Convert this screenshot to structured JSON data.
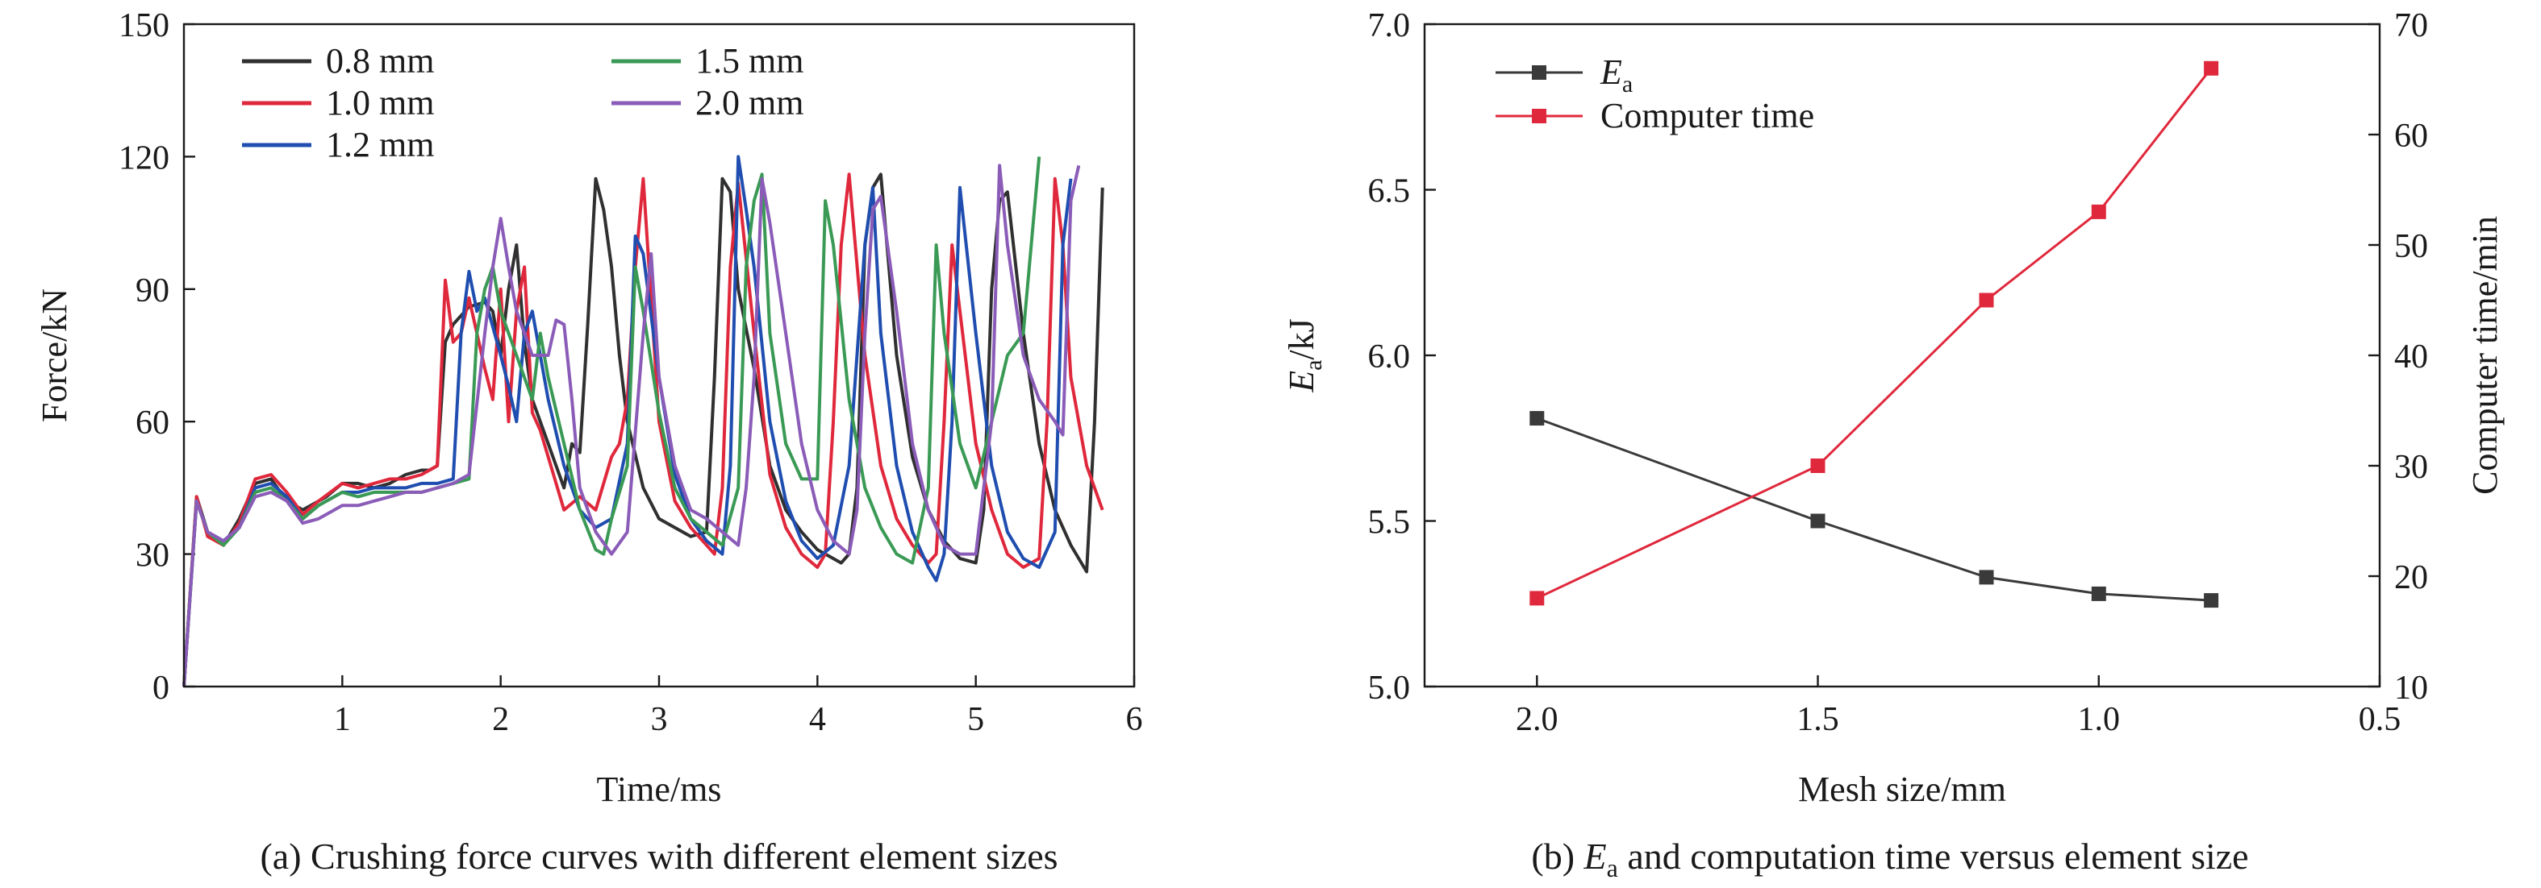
{
  "chart_data": [
    {
      "type": "line",
      "caption": "(a) Crushing force curves with different element sizes",
      "xlabel": "Time/ms",
      "ylabel": "Force/kN",
      "xlim": [
        0,
        6
      ],
      "ylim": [
        0,
        150
      ],
      "xticks": [
        1,
        2,
        3,
        4,
        5,
        6
      ],
      "yticks": [
        0,
        30,
        60,
        90,
        120,
        150
      ],
      "legend_position": "top-left",
      "series": [
        {
          "name": "0.8 mm",
          "color": "#303030",
          "x": [
            0,
            0.08,
            0.15,
            0.25,
            0.35,
            0.45,
            0.55,
            0.65,
            0.75,
            0.9,
            1.0,
            1.1,
            1.2,
            1.3,
            1.4,
            1.5,
            1.55,
            1.6,
            1.65,
            1.7,
            1.75,
            1.8,
            1.9,
            1.95,
            2.0,
            2.05,
            2.1,
            2.15,
            2.2,
            2.3,
            2.4,
            2.45,
            2.5,
            2.55,
            2.6,
            2.65,
            2.7,
            2.75,
            2.8,
            2.9,
            3.0,
            3.1,
            3.2,
            3.3,
            3.35,
            3.4,
            3.45,
            3.5,
            3.6,
            3.7,
            3.8,
            3.9,
            4.0,
            4.1,
            4.15,
            4.2,
            4.25,
            4.3,
            4.35,
            4.4,
            4.5,
            4.6,
            4.7,
            4.8,
            4.9,
            5.0,
            5.05,
            5.1,
            5.15,
            5.2,
            5.3,
            5.4,
            5.5,
            5.6,
            5.65,
            5.7,
            5.75,
            5.8
          ],
          "y": [
            0,
            43,
            35,
            32,
            38,
            46,
            47,
            42,
            40,
            43,
            46,
            46,
            45,
            46,
            48,
            49,
            49,
            50,
            78,
            82,
            84,
            86,
            87,
            85,
            75,
            90,
            100,
            78,
            65,
            55,
            45,
            55,
            53,
            82,
            115,
            108,
            95,
            75,
            60,
            45,
            38,
            36,
            34,
            35,
            70,
            115,
            112,
            90,
            72,
            50,
            40,
            35,
            31,
            29,
            28,
            30,
            45,
            100,
            113,
            116,
            75,
            52,
            40,
            33,
            29,
            28,
            40,
            90,
            110,
            112,
            80,
            55,
            40,
            32,
            29,
            26,
            60,
            113
          ]
        },
        {
          "name": "1.0 mm",
          "color": "#e0283c",
          "x": [
            0,
            0.08,
            0.15,
            0.25,
            0.35,
            0.45,
            0.55,
            0.65,
            0.75,
            0.85,
            1.0,
            1.1,
            1.2,
            1.3,
            1.4,
            1.5,
            1.6,
            1.65,
            1.7,
            1.75,
            1.8,
            1.9,
            1.95,
            2.0,
            2.05,
            2.1,
            2.15,
            2.2,
            2.25,
            2.3,
            2.4,
            2.5,
            2.6,
            2.7,
            2.75,
            2.8,
            2.85,
            2.9,
            3.0,
            3.1,
            3.2,
            3.3,
            3.35,
            3.4,
            3.45,
            3.5,
            3.6,
            3.7,
            3.8,
            3.9,
            4.0,
            4.05,
            4.1,
            4.15,
            4.2,
            4.3,
            4.4,
            4.5,
            4.6,
            4.7,
            4.75,
            4.8,
            4.85,
            4.9,
            5.0,
            5.1,
            5.2,
            5.3,
            5.4,
            5.45,
            5.5,
            5.55,
            5.6,
            5.7,
            5.8
          ],
          "y": [
            0,
            43,
            34,
            32,
            37,
            47,
            48,
            44,
            39,
            42,
            46,
            45,
            46,
            47,
            47,
            48,
            50,
            92,
            78,
            80,
            88,
            72,
            65,
            90,
            60,
            85,
            95,
            62,
            58,
            52,
            40,
            43,
            40,
            52,
            55,
            65,
            95,
            115,
            60,
            42,
            36,
            32,
            30,
            45,
            95,
            114,
            80,
            48,
            36,
            30,
            27,
            30,
            60,
            100,
            116,
            75,
            50,
            38,
            32,
            28,
            30,
            60,
            100,
            85,
            55,
            40,
            30,
            27,
            29,
            60,
            115,
            100,
            70,
            50,
            40
          ]
        },
        {
          "name": "1.2 mm",
          "color": "#1f4eb0",
          "x": [
            0,
            0.08,
            0.15,
            0.25,
            0.35,
            0.45,
            0.55,
            0.65,
            0.75,
            0.85,
            1.0,
            1.1,
            1.2,
            1.3,
            1.4,
            1.5,
            1.6,
            1.7,
            1.75,
            1.8,
            1.85,
            1.9,
            2.0,
            2.05,
            2.1,
            2.15,
            2.2,
            2.3,
            2.4,
            2.5,
            2.6,
            2.7,
            2.8,
            2.85,
            2.9,
            3.0,
            3.1,
            3.2,
            3.3,
            3.4,
            3.45,
            3.5,
            3.55,
            3.6,
            3.7,
            3.8,
            3.9,
            4.0,
            4.1,
            4.2,
            4.3,
            4.35,
            4.4,
            4.5,
            4.6,
            4.7,
            4.75,
            4.8,
            4.85,
            4.9,
            5.0,
            5.1,
            5.2,
            5.3,
            5.4,
            5.5,
            5.55,
            5.6
          ],
          "y": [
            0,
            42,
            35,
            33,
            36,
            45,
            46,
            43,
            38,
            41,
            44,
            44,
            45,
            45,
            45,
            46,
            46,
            47,
            80,
            94,
            85,
            88,
            75,
            68,
            60,
            80,
            85,
            65,
            50,
            40,
            36,
            38,
            55,
            102,
            98,
            70,
            48,
            38,
            33,
            30,
            50,
            120,
            108,
            95,
            60,
            42,
            33,
            29,
            32,
            50,
            100,
            113,
            80,
            50,
            35,
            27,
            24,
            30,
            60,
            113,
            80,
            50,
            35,
            29,
            27,
            35,
            100,
            115
          ]
        },
        {
          "name": "1.5 mm",
          "color": "#3a9a55",
          "x": [
            0,
            0.08,
            0.15,
            0.25,
            0.35,
            0.45,
            0.55,
            0.65,
            0.75,
            0.85,
            1.0,
            1.1,
            1.2,
            1.3,
            1.4,
            1.5,
            1.6,
            1.7,
            1.8,
            1.85,
            1.9,
            1.95,
            2.0,
            2.1,
            2.2,
            2.25,
            2.3,
            2.4,
            2.5,
            2.6,
            2.65,
            2.7,
            2.8,
            2.85,
            2.9,
            3.0,
            3.1,
            3.2,
            3.3,
            3.4,
            3.5,
            3.55,
            3.6,
            3.65,
            3.7,
            3.8,
            3.9,
            4.0,
            4.05,
            4.1,
            4.2,
            4.3,
            4.4,
            4.5,
            4.6,
            4.7,
            4.75,
            4.8,
            4.9,
            5.0,
            5.1,
            5.2,
            5.3,
            5.4
          ],
          "y": [
            0,
            42,
            35,
            32,
            36,
            44,
            45,
            42,
            38,
            41,
            44,
            43,
            44,
            44,
            44,
            44,
            45,
            46,
            47,
            80,
            90,
            95,
            85,
            75,
            65,
            80,
            70,
            55,
            40,
            31,
            30,
            38,
            50,
            95,
            85,
            62,
            45,
            38,
            35,
            32,
            45,
            95,
            110,
            116,
            80,
            55,
            47,
            47,
            110,
            100,
            65,
            45,
            36,
            30,
            28,
            45,
            100,
            80,
            55,
            45,
            60,
            75,
            80,
            120
          ]
        },
        {
          "name": "2.0 mm",
          "color": "#8a5cb8",
          "x": [
            0,
            0.08,
            0.15,
            0.25,
            0.35,
            0.45,
            0.55,
            0.65,
            0.75,
            0.85,
            1.0,
            1.1,
            1.2,
            1.3,
            1.4,
            1.5,
            1.6,
            1.7,
            1.8,
            1.9,
            1.95,
            2.0,
            2.05,
            2.1,
            2.2,
            2.3,
            2.35,
            2.4,
            2.45,
            2.5,
            2.6,
            2.7,
            2.8,
            2.9,
            2.95,
            3.0,
            3.1,
            3.2,
            3.3,
            3.4,
            3.5,
            3.55,
            3.6,
            3.65,
            3.7,
            3.8,
            3.9,
            4.0,
            4.1,
            4.2,
            4.25,
            4.3,
            4.35,
            4.4,
            4.5,
            4.6,
            4.7,
            4.8,
            4.9,
            5.0,
            5.1,
            5.15,
            5.2,
            5.3,
            5.4,
            5.5,
            5.55,
            5.6,
            5.65
          ],
          "y": [
            0,
            42,
            35,
            33,
            36,
            43,
            44,
            42,
            37,
            38,
            41,
            41,
            42,
            43,
            44,
            44,
            45,
            46,
            48,
            80,
            95,
            106,
            95,
            85,
            75,
            75,
            83,
            82,
            65,
            45,
            35,
            30,
            35,
            80,
            98,
            70,
            50,
            40,
            38,
            35,
            32,
            45,
            70,
            115,
            105,
            80,
            55,
            40,
            33,
            30,
            40,
            80,
            108,
            111,
            85,
            55,
            40,
            32,
            30,
            30,
            60,
            118,
            100,
            75,
            65,
            60,
            57,
            110,
            118
          ]
        }
      ]
    },
    {
      "type": "line",
      "caption": "(b) Ea and computation time versus element size",
      "xlabel": "Mesh size/mm",
      "ylabel": "Ea/kJ",
      "ylabel_right": "Computer time/min",
      "x_reversed": true,
      "xlim": [
        2.2,
        0.5
      ],
      "xticks": [
        2.0,
        1.5,
        1.0,
        0.5
      ],
      "ylim": [
        5.0,
        7.0
      ],
      "yticks": [
        5.0,
        5.5,
        6.0,
        6.5,
        7.0
      ],
      "ylim_right": [
        10,
        70
      ],
      "yticks_right": [
        10,
        20,
        30,
        40,
        50,
        60,
        70
      ],
      "legend_position": "top-left",
      "series": [
        {
          "name": "Ea",
          "axis": "left",
          "marker": "square",
          "color": "#3a3a3a",
          "x": [
            2.0,
            1.5,
            1.2,
            1.0,
            0.8
          ],
          "y": [
            5.81,
            5.5,
            5.33,
            5.28,
            5.26
          ]
        },
        {
          "name": "Computer time",
          "axis": "right",
          "marker": "square",
          "color": "#e0283c",
          "x": [
            2.0,
            1.5,
            1.2,
            1.0,
            0.8
          ],
          "y": [
            18,
            30,
            45,
            53,
            66
          ]
        }
      ]
    }
  ]
}
